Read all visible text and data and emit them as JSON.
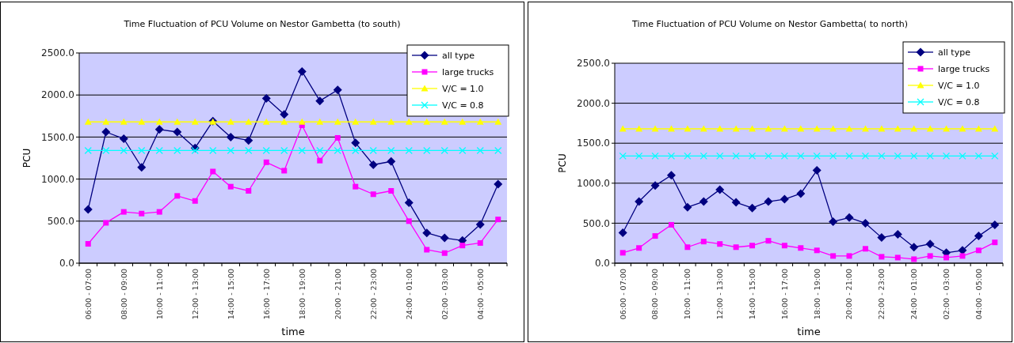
{
  "chart_data": [
    {
      "type": "line",
      "title": "Time Fluctuation of PCU Volume on Nestor Gambetta  (to south)",
      "xlabel": "time",
      "ylabel": "PCU",
      "categories": [
        "06:00 - 07:00",
        null,
        "08:00 - 09:00",
        null,
        "10:00 - 11:00",
        null,
        "12:00 - 13:00",
        null,
        "14:00 - 15:00",
        null,
        "16:00 - 17:00",
        null,
        "18:00 - 19:00",
        null,
        "20:00 - 21:00",
        null,
        "22:00 - 23:00",
        null,
        "24:00 - 01:00",
        null,
        "02:00 - 03:00",
        null,
        "04:00 - 05:00",
        null
      ],
      "ylim": [
        0,
        2500
      ],
      "yticks": [
        {
          "value": 0,
          "label": "0.0"
        },
        {
          "value": 500,
          "label": "500.0"
        },
        {
          "value": 1000,
          "label": "1000.0"
        },
        {
          "value": 1500,
          "label": "1500.0"
        },
        {
          "value": 2000,
          "label": "2000.0"
        },
        {
          "value": 2500,
          "label": "2500.0"
        }
      ],
      "grid": "y",
      "legend": "top right",
      "series": [
        {
          "name": "all type",
          "color": "#000080",
          "marker": "diamond",
          "values": [
            640,
            1560,
            1480,
            1140,
            1590,
            1560,
            1370,
            1690,
            1500,
            1460,
            1960,
            1770,
            2280,
            1930,
            2060,
            1430,
            1170,
            1210,
            720,
            360,
            300,
            270,
            460,
            940
          ]
        },
        {
          "name": "large trucks",
          "color": "#ff00ff",
          "marker": "square",
          "values": [
            230,
            480,
            610,
            590,
            610,
            800,
            740,
            1090,
            910,
            860,
            1200,
            1100,
            1640,
            1220,
            1490,
            910,
            820,
            860,
            500,
            160,
            120,
            210,
            240,
            520
          ]
        },
        {
          "name": "V/C = 1.0",
          "color": "#ffff00",
          "marker": "triangle",
          "values": [
            1680,
            1680,
            1680,
            1680,
            1680,
            1680,
            1680,
            1680,
            1680,
            1680,
            1680,
            1680,
            1680,
            1680,
            1680,
            1680,
            1680,
            1680,
            1680,
            1680,
            1680,
            1680,
            1680,
            1680
          ]
        },
        {
          "name": "V/C = 0.8",
          "color": "#00ffff",
          "marker": "cross",
          "values": [
            1340,
            1340,
            1340,
            1340,
            1340,
            1340,
            1340,
            1340,
            1340,
            1340,
            1340,
            1340,
            1340,
            1340,
            1340,
            1340,
            1340,
            1340,
            1340,
            1340,
            1340,
            1340,
            1340,
            1340
          ]
        }
      ]
    },
    {
      "type": "line",
      "title": "Time Fluctuation of PCU Volume on Nestor Gambetta( to north)",
      "xlabel": "time",
      "ylabel": "PCU",
      "categories": [
        "06:00 - 07:00",
        null,
        "08:00 - 09:00",
        null,
        "10:00 - 11:00",
        null,
        "12:00 - 13:00",
        null,
        "14:00 - 15:00",
        null,
        "16:00 - 17:00",
        null,
        "18:00 - 19:00",
        null,
        "20:00 - 21:00",
        null,
        "22:00 - 23:00",
        null,
        "24:00 - 01:00",
        null,
        "02:00 - 03:00",
        null,
        "04:00 - 05:00",
        null
      ],
      "ylim": [
        0,
        2500
      ],
      "yticks": [
        {
          "value": 0,
          "label": "0.0"
        },
        {
          "value": 500,
          "label": "500.0"
        },
        {
          "value": 1000,
          "label": "1000.0"
        },
        {
          "value": 1500,
          "label": "1500.0"
        },
        {
          "value": 2000,
          "label": "2000.0"
        },
        {
          "value": 2500,
          "label": "2500.0"
        }
      ],
      "grid": "y",
      "legend": "top right",
      "series": [
        {
          "name": "all type",
          "color": "#000080",
          "marker": "diamond",
          "values": [
            380,
            770,
            970,
            1100,
            700,
            770,
            920,
            760,
            690,
            770,
            800,
            870,
            1160,
            520,
            570,
            500,
            320,
            360,
            200,
            240,
            130,
            160,
            340,
            480
          ]
        },
        {
          "name": "large trucks",
          "color": "#ff00ff",
          "marker": "square",
          "values": [
            130,
            190,
            340,
            480,
            200,
            270,
            240,
            200,
            220,
            280,
            220,
            190,
            160,
            90,
            90,
            180,
            80,
            70,
            50,
            90,
            70,
            90,
            160,
            260
          ]
        },
        {
          "name": "V/C = 1.0",
          "color": "#ffff00",
          "marker": "triangle",
          "values": [
            1680,
            1680,
            1680,
            1680,
            1680,
            1680,
            1680,
            1680,
            1680,
            1680,
            1680,
            1680,
            1680,
            1680,
            1680,
            1680,
            1680,
            1680,
            1680,
            1680,
            1680,
            1680,
            1680,
            1680
          ]
        },
        {
          "name": "V/C = 0.8",
          "color": "#00ffff",
          "marker": "cross",
          "values": [
            1340,
            1340,
            1340,
            1340,
            1340,
            1340,
            1340,
            1340,
            1340,
            1340,
            1340,
            1340,
            1340,
            1340,
            1340,
            1340,
            1340,
            1340,
            1340,
            1340,
            1340,
            1340,
            1340,
            1340
          ]
        }
      ]
    }
  ]
}
